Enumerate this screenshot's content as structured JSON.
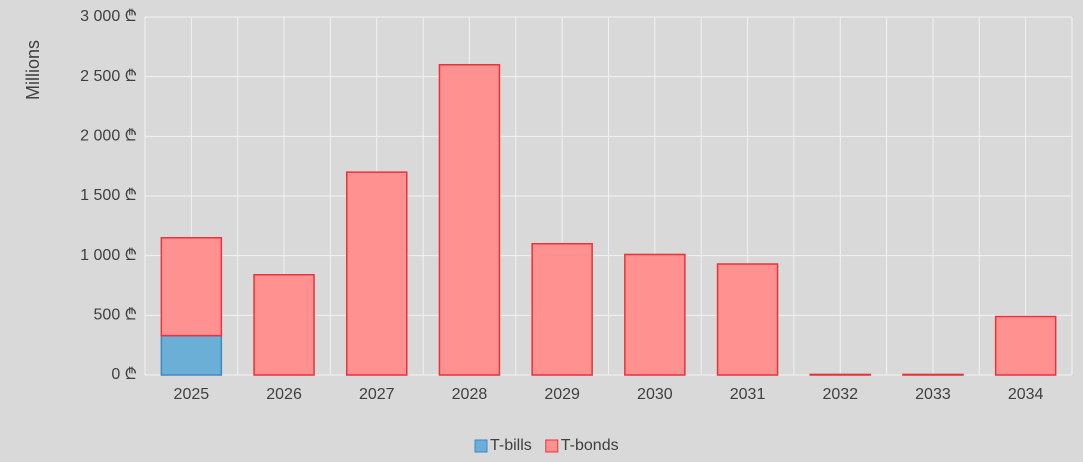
{
  "chart_data": {
    "type": "stacked_bar",
    "y_label": "Millions",
    "categories": [
      "2025",
      "2026",
      "2027",
      "2028",
      "2029",
      "2030",
      "2031",
      "2032",
      "2033",
      "2034"
    ],
    "series": [
      {
        "name": "T-bills",
        "color": "#6baed6",
        "stroke": "#3f88c5",
        "values": [
          330,
          0,
          0,
          0,
          0,
          0,
          0,
          0,
          0,
          0
        ]
      },
      {
        "name": "T-bonds",
        "color": "#ff9191",
        "stroke": "#e8333a",
        "values": [
          820,
          840,
          1700,
          2600,
          1100,
          1010,
          930,
          5,
          5,
          490
        ]
      }
    ],
    "ylim": [
      0,
      3000
    ],
    "yticks": [
      {
        "value": 0,
        "label": "0 ₾"
      },
      {
        "value": 500,
        "label": "500 ₾"
      },
      {
        "value": 1000,
        "label": "1 000 ₾"
      },
      {
        "value": 1500,
        "label": "1 500 ₾"
      },
      {
        "value": 2000,
        "label": "2 000 ₾"
      },
      {
        "value": 2500,
        "label": "2 500 ₾"
      },
      {
        "value": 3000,
        "label": "3 000 ₾"
      }
    ],
    "grid": true,
    "legend": "bottom"
  }
}
